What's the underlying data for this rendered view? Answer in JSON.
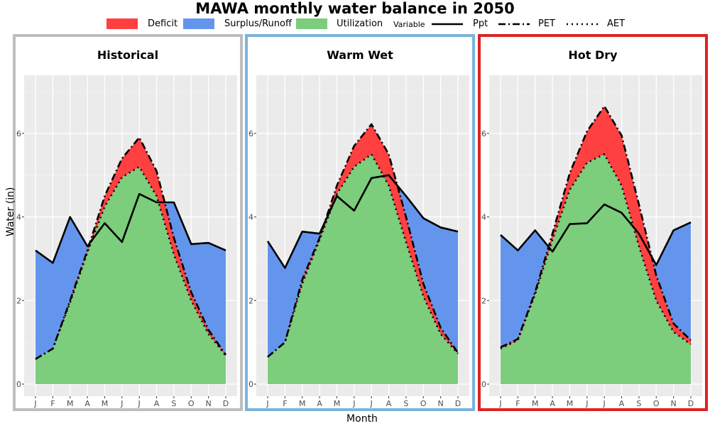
{
  "chart_data": {
    "type": "area",
    "title": "MAWA monthly water balance in 2050",
    "xlabel": "Month",
    "ylabel": "Water (in)",
    "ylim": [
      0,
      7
    ],
    "yticks": [
      0,
      2,
      4,
      6
    ],
    "categories": [
      "J",
      "F",
      "M",
      "A",
      "M",
      "J",
      "J",
      "A",
      "S",
      "O",
      "N",
      "D"
    ],
    "legend": {
      "position": "top",
      "fill_entries": [
        {
          "name": "Deficit",
          "color": "#ff4040"
        },
        {
          "name": "Surplus/Runoff",
          "color": "#6495ed"
        },
        {
          "name": "Utilization",
          "color": "#7ccd7c"
        }
      ],
      "line_title": "Variable",
      "line_entries": [
        {
          "name": "Ppt",
          "style": "solid"
        },
        {
          "name": "PET",
          "style": "dashdot"
        },
        {
          "name": "AET",
          "style": "dotted"
        }
      ]
    },
    "panels": [
      {
        "title": "Historical",
        "border_color": "#bebebe",
        "series": [
          {
            "name": "Ppt",
            "values": [
              3.2,
              2.9,
              4.0,
              3.3,
              3.85,
              3.4,
              4.55,
              4.35,
              4.35,
              3.35,
              3.38,
              3.2
            ]
          },
          {
            "name": "PET",
            "values": [
              0.6,
              0.85,
              2.0,
              3.2,
              4.5,
              5.4,
              5.9,
              5.1,
              3.5,
              2.2,
              1.3,
              0.7
            ]
          },
          {
            "name": "AET",
            "values": [
              0.6,
              0.85,
              1.95,
              3.15,
              4.25,
              4.95,
              5.2,
              4.5,
              3.1,
              2.0,
              1.2,
              0.68
            ]
          }
        ]
      },
      {
        "title": "Warm Wet",
        "border_color": "#7ab4dc",
        "series": [
          {
            "name": "Ppt",
            "values": [
              3.42,
              2.78,
              3.65,
              3.6,
              4.5,
              4.15,
              4.93,
              5.0,
              4.5,
              3.97,
              3.75,
              3.65
            ]
          },
          {
            "name": "PET",
            "values": [
              0.65,
              1.0,
              2.5,
              3.5,
              4.75,
              5.7,
              6.22,
              5.5,
              4.0,
              2.4,
              1.35,
              0.75
            ]
          },
          {
            "name": "AET",
            "values": [
              0.65,
              1.0,
              2.4,
              3.45,
              4.55,
              5.2,
              5.5,
              4.75,
              3.4,
              2.1,
              1.2,
              0.73
            ]
          }
        ]
      },
      {
        "title": "Hot Dry",
        "border_color": "#dd2222",
        "series": [
          {
            "name": "Ppt",
            "values": [
              3.57,
              3.2,
              3.68,
              3.17,
              3.83,
              3.85,
              4.3,
              4.1,
              3.6,
              2.85,
              3.68,
              3.87
            ]
          },
          {
            "name": "PET",
            "values": [
              0.88,
              1.08,
              2.2,
              3.6,
              5.05,
              6.05,
              6.65,
              5.95,
              4.3,
              2.6,
              1.45,
              1.05
            ]
          },
          {
            "name": "AET",
            "values": [
              0.85,
              1.05,
              2.15,
              3.45,
              4.65,
              5.3,
              5.5,
              4.75,
              3.3,
              2.0,
              1.25,
              0.95
            ]
          }
        ]
      }
    ]
  }
}
